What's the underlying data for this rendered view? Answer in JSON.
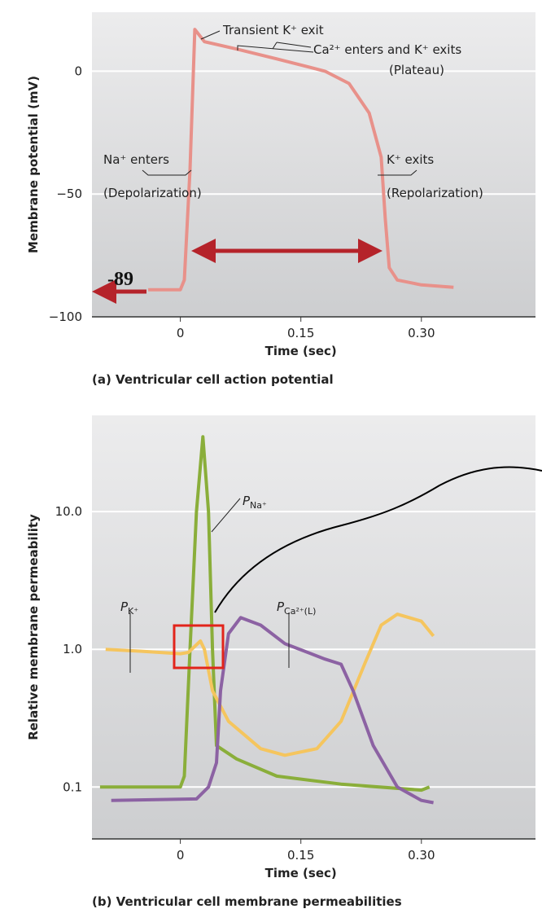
{
  "chart_data": [
    {
      "type": "line",
      "title": "(a) Ventricular cell action potential",
      "x_label": "Time (sec)",
      "y_label": "Membrane potential (mV)",
      "xlim": [
        -0.11,
        0.442
      ],
      "ylim": [
        -100,
        24
      ],
      "xticks": [
        0,
        0.15,
        {
          "value": 0.3,
          "label": "0.30"
        }
      ],
      "yticks": [
        {
          "value": -100,
          "label": "−100"
        },
        {
          "value": -50,
          "label": "−50"
        },
        0
      ],
      "grid": true,
      "series": [
        {
          "color": "#e8918a",
          "x": [
            -0.04,
            0,
            0.005,
            0.012,
            0.018,
            0.03,
            0.07,
            0.12,
            0.18,
            0.21,
            0.235,
            0.25,
            0.255,
            0.26,
            0.27,
            0.3,
            0.34
          ],
          "values": [
            -89,
            -89,
            -85,
            -40,
            17,
            12,
            9,
            5,
            0,
            -5,
            -17,
            -35,
            -60,
            -80,
            -85,
            -87,
            -88
          ]
        }
      ],
      "annotations": [
        "Transient K⁺ exit",
        "Ca²⁺ enters and K⁺ exits",
        "(Plateau)",
        "Na⁺ enters",
        "(Depolarization)",
        "K⁺ exits",
        "(Repolarization)",
        "-89"
      ]
    },
    {
      "type": "line",
      "title": "(b) Ventricular cell membrane permeabilities",
      "x_label": "Time (sec)",
      "y_label": "Relative membrane permeability",
      "xlim": [
        -0.11,
        0.442
      ],
      "ylim": [
        0.042,
        50
      ],
      "log_y": true,
      "xticks": [
        0,
        0.15,
        {
          "value": 0.3,
          "label": "0.30"
        }
      ],
      "yticks": [
        0.1,
        {
          "value": 1,
          "label": "1.0"
        },
        {
          "value": 10,
          "label": "10.0"
        }
      ],
      "grid": true,
      "series": [
        {
          "name": "PNa⁺",
          "color": "#8aae3a",
          "x": [
            -0.1,
            0,
            0.005,
            0.012,
            0.02,
            0.028,
            0.035,
            0.04,
            0.045,
            0.07,
            0.12,
            0.2,
            0.3,
            0.31
          ],
          "values": [
            0.1,
            0.1,
            0.12,
            1,
            10,
            35,
            10,
            1,
            0.2,
            0.16,
            0.12,
            0.105,
            0.095,
            0.1
          ]
        },
        {
          "name": "PK⁺",
          "color": "#f5c55e",
          "x": [
            -0.093,
            -0.05,
            0,
            0.01,
            0.025,
            0.03,
            0.04,
            0.06,
            0.1,
            0.13,
            0.17,
            0.2,
            0.23,
            0.25,
            0.27,
            0.3,
            0.315
          ],
          "values": [
            1,
            0.97,
            0.93,
            0.95,
            1.15,
            1,
            0.5,
            0.3,
            0.19,
            0.17,
            0.19,
            0.3,
            0.8,
            1.5,
            1.8,
            1.6,
            1.25
          ]
        },
        {
          "name": "PCa²⁺(L)",
          "color": "#8c62a3",
          "x": [
            -0.086,
            0.02,
            0.035,
            0.045,
            0.05,
            0.06,
            0.075,
            0.1,
            0.13,
            0.18,
            0.2,
            0.215,
            0.24,
            0.27,
            0.3,
            0.315
          ],
          "values": [
            0.08,
            0.082,
            0.1,
            0.15,
            0.5,
            1.3,
            1.7,
            1.5,
            1.1,
            0.85,
            0.78,
            0.5,
            0.2,
            0.1,
            0.08,
            0.077
          ]
        }
      ]
    }
  ]
}
